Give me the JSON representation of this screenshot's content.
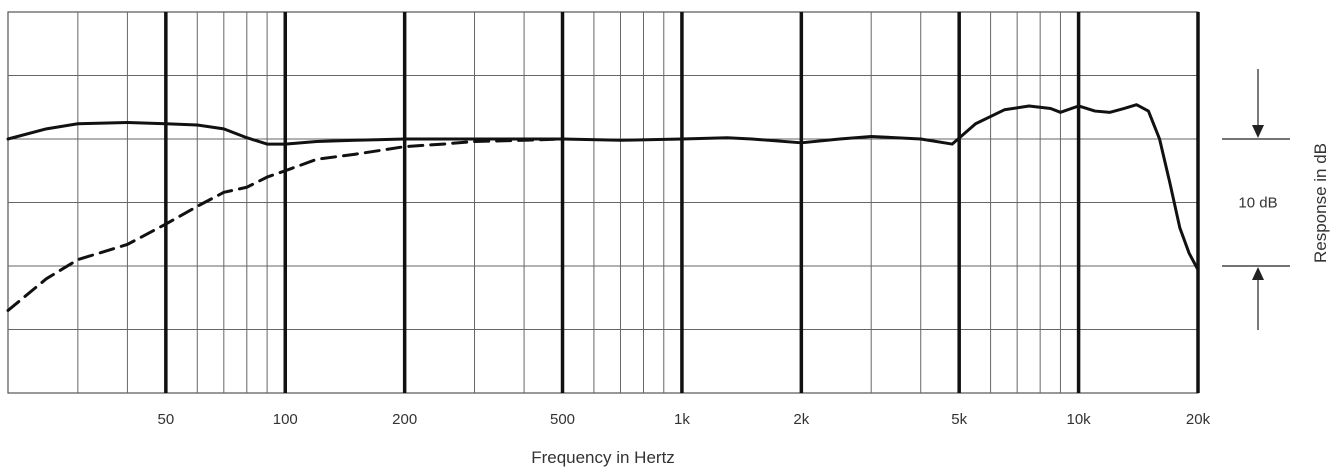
{
  "chart_data": {
    "type": "line",
    "xlabel": "Frequency in Hertz",
    "ylabel": "Response in dB",
    "x_scale": "log",
    "xlim": [
      20,
      20000
    ],
    "ylim": [
      -20,
      10
    ],
    "grid": true,
    "x_ticks": [
      {
        "value": 50,
        "label": "50"
      },
      {
        "value": 100,
        "label": "100"
      },
      {
        "value": 200,
        "label": "200"
      },
      {
        "value": 500,
        "label": "500"
      },
      {
        "value": 1000,
        "label": "1k"
      },
      {
        "value": 2000,
        "label": "2k"
      },
      {
        "value": 5000,
        "label": "5k"
      },
      {
        "value": 10000,
        "label": "10k"
      },
      {
        "value": 20000,
        "label": "20k"
      }
    ],
    "scale_marker": {
      "label": "10 dB",
      "from": 0,
      "to": -10
    },
    "series": [
      {
        "style": "solid",
        "color": "#111111",
        "points": [
          [
            20,
            0
          ],
          [
            25,
            0.8
          ],
          [
            30,
            1.2
          ],
          [
            40,
            1.3
          ],
          [
            50,
            1.2
          ],
          [
            60,
            1.1
          ],
          [
            70,
            0.8
          ],
          [
            80,
            0.1
          ],
          [
            90,
            -0.4
          ],
          [
            100,
            -0.4
          ],
          [
            120,
            -0.2
          ],
          [
            150,
            -0.1
          ],
          [
            200,
            0
          ],
          [
            300,
            0
          ],
          [
            500,
            0
          ],
          [
            700,
            -0.1
          ],
          [
            1000,
            0
          ],
          [
            1300,
            0.1
          ],
          [
            1500,
            0
          ],
          [
            2000,
            -0.3
          ],
          [
            2500,
            0
          ],
          [
            3000,
            0.2
          ],
          [
            4000,
            0
          ],
          [
            4800,
            -0.4
          ],
          [
            5500,
            1.2
          ],
          [
            6500,
            2.3
          ],
          [
            7500,
            2.6
          ],
          [
            8500,
            2.4
          ],
          [
            9000,
            2.1
          ],
          [
            10000,
            2.6
          ],
          [
            11000,
            2.2
          ],
          [
            12000,
            2.1
          ],
          [
            13000,
            2.4
          ],
          [
            14000,
            2.7
          ],
          [
            15000,
            2.2
          ],
          [
            16000,
            0
          ],
          [
            17000,
            -3.5
          ],
          [
            18000,
            -7
          ],
          [
            19000,
            -9
          ],
          [
            20000,
            -10.3
          ]
        ]
      },
      {
        "style": "dashed",
        "color": "#111111",
        "points": [
          [
            20,
            -13.5
          ],
          [
            25,
            -11
          ],
          [
            30,
            -9.5
          ],
          [
            40,
            -8.3
          ],
          [
            50,
            -6.7
          ],
          [
            60,
            -5.3
          ],
          [
            70,
            -4.2
          ],
          [
            80,
            -3.8
          ],
          [
            90,
            -3
          ],
          [
            100,
            -2.5
          ],
          [
            120,
            -1.6
          ],
          [
            150,
            -1.2
          ],
          [
            200,
            -0.6
          ],
          [
            250,
            -0.4
          ],
          [
            300,
            -0.2
          ],
          [
            400,
            -0.1
          ],
          [
            500,
            0
          ]
        ]
      }
    ]
  }
}
